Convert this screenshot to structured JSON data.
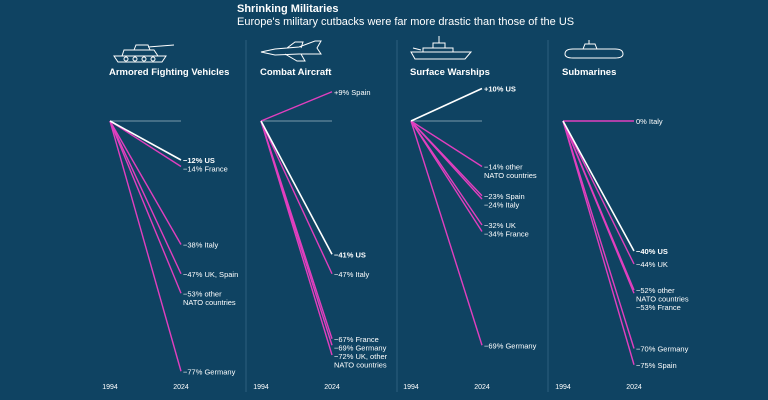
{
  "header": {
    "title": "Shrinking Militaries",
    "subtitle": "Europe's military cutbacks were far more drastic than those of the US"
  },
  "colors": {
    "background": "#0f4362",
    "us_line": "#ffffff",
    "other_line": "#e13fbf",
    "divider": "#2d5f7d",
    "reference": "#9fb6c4"
  },
  "chart_data": [
    {
      "type": "line",
      "title": "Armored Fighting Vehicles",
      "icon": "tank-icon",
      "x": [
        "1994",
        "2024"
      ],
      "ylim": [
        -80,
        15
      ],
      "series": [
        {
          "name": "US",
          "label": "−12% US",
          "values": [
            0,
            -12
          ],
          "highlight": true
        },
        {
          "name": "France",
          "label": "−14% France",
          "values": [
            0,
            -14
          ]
        },
        {
          "name": "Italy",
          "label": "−38% Italy",
          "values": [
            0,
            -38
          ]
        },
        {
          "name": "UK, Spain",
          "label": "−47% UK, Spain",
          "values": [
            0,
            -47
          ]
        },
        {
          "name": "other NATO countries",
          "label": "−53% other\nNATO countries",
          "values": [
            0,
            -53
          ]
        },
        {
          "name": "Germany",
          "label": "−77% Germany",
          "values": [
            0,
            -77
          ]
        }
      ]
    },
    {
      "type": "line",
      "title": "Combat Aircraft",
      "icon": "fighter-jet-icon",
      "x": [
        "1994",
        "2024"
      ],
      "ylim": [
        -80,
        15
      ],
      "series": [
        {
          "name": "Spain",
          "label": "+9% Spain",
          "values": [
            0,
            9
          ]
        },
        {
          "name": "US",
          "label": "−41% US",
          "values": [
            0,
            -41
          ],
          "highlight": true
        },
        {
          "name": "Italy",
          "label": "−47% Italy",
          "values": [
            0,
            -47
          ]
        },
        {
          "name": "France",
          "label": "−67% France",
          "values": [
            0,
            -67
          ]
        },
        {
          "name": "Germany",
          "label": "−69% Germany",
          "values": [
            0,
            -69
          ]
        },
        {
          "name": "UK, other NATO countries",
          "label": "−72% UK, other\nNATO countries",
          "values": [
            0,
            -72
          ]
        }
      ]
    },
    {
      "type": "line",
      "title": "Surface Warships",
      "icon": "warship-icon",
      "x": [
        "1994",
        "2024"
      ],
      "ylim": [
        -80,
        15
      ],
      "series": [
        {
          "name": "US",
          "label": "+10% US",
          "values": [
            0,
            10
          ],
          "highlight": true
        },
        {
          "name": "other NATO countries",
          "label": "−14% other\nNATO countries",
          "values": [
            0,
            -14
          ]
        },
        {
          "name": "Spain",
          "label": "−23% Spain",
          "values": [
            0,
            -23
          ]
        },
        {
          "name": "Italy",
          "label": "−24% Italy",
          "values": [
            0,
            -24
          ]
        },
        {
          "name": "UK",
          "label": "−32% UK",
          "values": [
            0,
            -32
          ]
        },
        {
          "name": "France",
          "label": "−34% France",
          "values": [
            0,
            -34
          ]
        },
        {
          "name": "Germany",
          "label": "−69% Germany",
          "values": [
            0,
            -69
          ]
        }
      ]
    },
    {
      "type": "line",
      "title": "Submarines",
      "icon": "submarine-icon",
      "x": [
        "1994",
        "2024"
      ],
      "ylim": [
        -80,
        15
      ],
      "series": [
        {
          "name": "Italy",
          "label": "0% Italy",
          "values": [
            0,
            0
          ]
        },
        {
          "name": "US",
          "label": "−40% US",
          "values": [
            0,
            -40
          ],
          "highlight": true
        },
        {
          "name": "UK",
          "label": "−44% UK",
          "values": [
            0,
            -44
          ]
        },
        {
          "name": "other NATO countries",
          "label": "−52% other\nNATO countries",
          "values": [
            0,
            -52
          ]
        },
        {
          "name": "France",
          "label": "−53% France",
          "values": [
            0,
            -53
          ]
        },
        {
          "name": "Germany",
          "label": "−70% Germany",
          "values": [
            0,
            -70
          ]
        },
        {
          "name": "Spain",
          "label": "−75% Spain",
          "values": [
            0,
            -75
          ]
        }
      ]
    }
  ]
}
